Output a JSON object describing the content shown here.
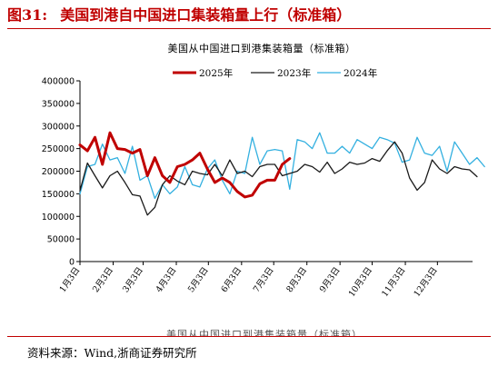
{
  "header": {
    "figure_number": "图31:",
    "figure_title": "美国到港自中国进口集装箱量上行（标准箱）"
  },
  "source_note": "资料来源：Wind,浙商证券研究所",
  "cut_caption": "美国从中国进口到港集装箱量（标准箱）",
  "chart_data": {
    "type": "line",
    "title": "美国从中国进口到港集装箱量（标准箱）",
    "xlabel": "",
    "ylabel": "",
    "ylim": [
      0,
      400000
    ],
    "yticks": [
      0,
      50000,
      100000,
      150000,
      200000,
      250000,
      300000,
      350000,
      400000
    ],
    "ytick_labels": [
      "0",
      "50000",
      "100000",
      "150000",
      "200000",
      "250000",
      "300000",
      "350000",
      "400000"
    ],
    "x_domain": [
      1,
      53.4
    ],
    "xticks": [
      {
        "label": "1月3日",
        "x": 1
      },
      {
        "label": "2月3日",
        "x": 5.43
      },
      {
        "label": "3月3日",
        "x": 9.43
      },
      {
        "label": "4月3日",
        "x": 13.86
      },
      {
        "label": "5月3日",
        "x": 18.14
      },
      {
        "label": "6月3日",
        "x": 22.57
      },
      {
        "label": "7月3日",
        "x": 26.86
      },
      {
        "label": "8月3日",
        "x": 31.29
      },
      {
        "label": "9月3日",
        "x": 35.71
      },
      {
        "label": "10月3日",
        "x": 40
      },
      {
        "label": "11月3日",
        "x": 44.43
      },
      {
        "label": "12月3日",
        "x": 48.71
      }
    ],
    "grid": false,
    "legend_position": "top-center",
    "series": [
      {
        "name": "2025年",
        "color": "#c00000",
        "width": 3,
        "values": [
          258000,
          245000,
          275000,
          215000,
          285000,
          250000,
          248000,
          240000,
          248000,
          190000,
          230000,
          190000,
          175000,
          210000,
          215000,
          225000,
          240000,
          205000,
          175000,
          185000,
          175000,
          155000,
          143000,
          147000,
          172000,
          180000,
          180000,
          215000,
          228000
        ]
      },
      {
        "name": "2023年",
        "color": "#1a1a1a",
        "width": 1.3,
        "values": [
          157000,
          218000,
          190000,
          163000,
          190000,
          200000,
          175000,
          148000,
          145000,
          103000,
          120000,
          170000,
          190000,
          178000,
          170000,
          200000,
          195000,
          192000,
          215000,
          190000,
          225000,
          195000,
          200000,
          188000,
          210000,
          215000,
          215000,
          190000,
          195000,
          200000,
          215000,
          210000,
          198000,
          220000,
          195000,
          205000,
          220000,
          215000,
          218000,
          228000,
          222000,
          245000,
          265000,
          240000,
          185000,
          158000,
          175000,
          225000,
          205000,
          195000,
          210000,
          205000,
          203000,
          188000
        ]
      },
      {
        "name": "2024年",
        "color": "#33b0e0",
        "width": 1.3,
        "values": [
          150000,
          210000,
          215000,
          260000,
          225000,
          230000,
          195000,
          255000,
          180000,
          190000,
          140000,
          170000,
          150000,
          165000,
          210000,
          170000,
          165000,
          205000,
          225000,
          180000,
          150000,
          200000,
          195000,
          275000,
          215000,
          245000,
          248000,
          245000,
          160000,
          270000,
          265000,
          250000,
          285000,
          240000,
          240000,
          255000,
          240000,
          270000,
          260000,
          250000,
          275000,
          270000,
          262000,
          220000,
          225000,
          275000,
          240000,
          235000,
          255000,
          200000,
          265000,
          240000,
          215000,
          230000,
          210000
        ]
      }
    ]
  }
}
